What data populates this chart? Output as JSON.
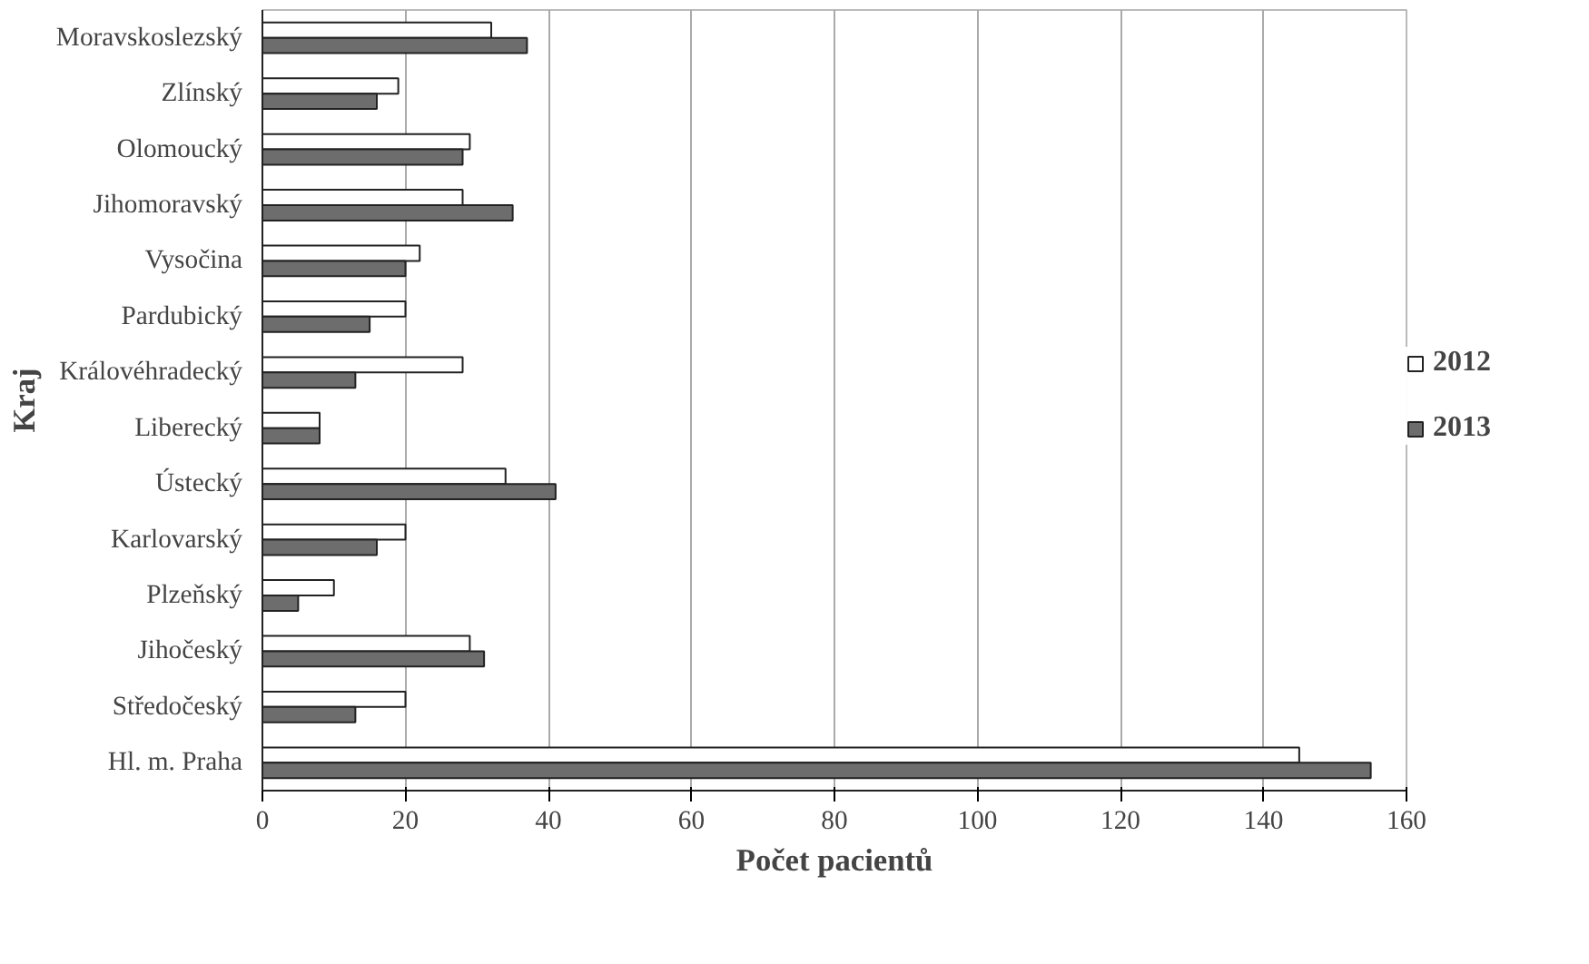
{
  "chart_data": {
    "type": "bar",
    "orientation": "horizontal",
    "xlabel": "Počet pacientů",
    "ylabel": "Kraj",
    "categories": [
      "Moravskoslezský",
      "Zlínský",
      "Olomoucký",
      "Jihomoravský",
      "Vysočina",
      "Pardubický",
      "Královéhradecký",
      "Liberecký",
      "Ústecký",
      "Karlovarský",
      "Plzeňský",
      "Jihočeský",
      "Středočeský",
      "Hl. m. Praha"
    ],
    "series": [
      {
        "name": "2012",
        "color": "#ffffff",
        "values": [
          32,
          19,
          29,
          28,
          22,
          20,
          28,
          8,
          34,
          20,
          10,
          29,
          20,
          145
        ]
      },
      {
        "name": "2013",
        "color": "#6d6d6d",
        "values": [
          37,
          16,
          28,
          35,
          20,
          15,
          13,
          8,
          41,
          16,
          5,
          31,
          13,
          155
        ]
      }
    ],
    "xlim": [
      0,
      160
    ],
    "xticks": [
      0,
      20,
      40,
      60,
      80,
      100,
      120,
      140,
      160
    ],
    "grid": "x",
    "legend": "right"
  }
}
